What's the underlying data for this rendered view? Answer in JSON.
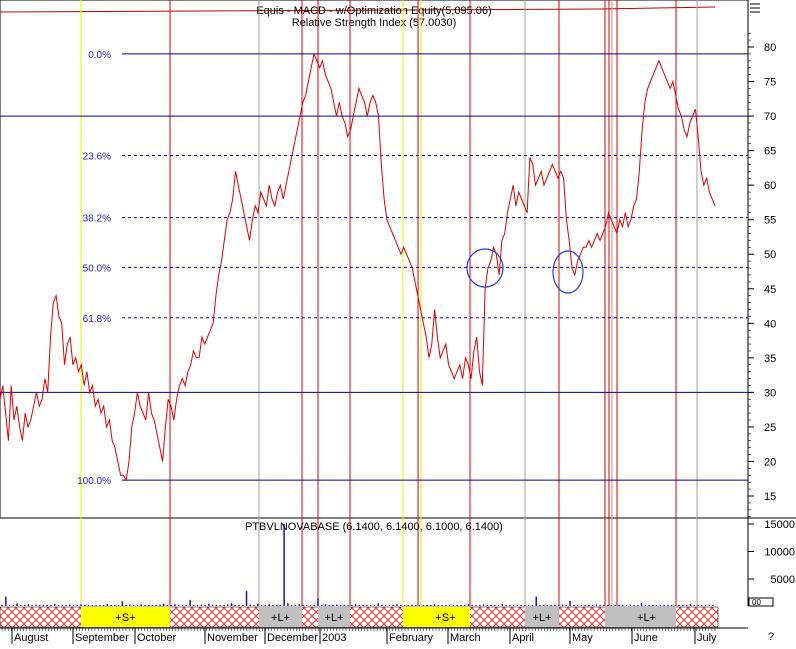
{
  "header": {
    "line1": "Equis - MACD - w/Optimization Equity(5,095.06)",
    "line2": "Relative Strength Index (57.0030)"
  },
  "volume_header": "PTBVLNOVABASE (6.1400, 6.1400, 6.1000, 6.1400)",
  "colors": {
    "rsi_line": "#e00000",
    "fib_lines": "#0000a0",
    "fib_labels": "#2020c0",
    "vertical_red": "#e00000",
    "vertical_yellow": "#f0f000",
    "vertical_gray": "#a0a0a0",
    "signal_yellow": "#ffff00",
    "signal_gray": "#c0c0c0",
    "hatch": "#e03030",
    "volume_bars": "#0000c0",
    "circles": "#2040d0"
  },
  "chart_data": [
    {
      "type": "line",
      "title": "Relative Strength Index (57.0030)",
      "y_axis_ticks": [
        80,
        75,
        70,
        65,
        60,
        55,
        50,
        45,
        40,
        35,
        30,
        25,
        20,
        15
      ],
      "ylim": [
        12,
        84
      ],
      "horizontal_solid_levels": [
        70,
        30
      ],
      "fib_levels": [
        {
          "label": "0.0%",
          "value": 79
        },
        {
          "label": "23.6%",
          "value": 64.3
        },
        {
          "label": "38.2%",
          "value": 55.3
        },
        {
          "label": "50.0%",
          "value": 48.1
        },
        {
          "label": "61.8%",
          "value": 40.8
        },
        {
          "label": "100.0%",
          "value": 17.3
        }
      ],
      "last_value": 57.003,
      "series": [
        {
          "values": [
            29,
            31,
            27,
            23,
            31,
            26,
            28,
            25,
            23,
            27,
            25,
            26,
            28,
            30,
            28,
            29,
            32,
            30,
            38,
            43,
            44,
            41,
            40,
            34,
            37,
            38,
            34,
            35,
            33,
            34,
            31,
            33,
            30,
            31,
            28,
            29,
            27,
            28,
            25,
            26,
            23,
            22,
            20,
            18,
            18,
            17.3,
            20,
            25,
            27,
            30,
            28,
            27,
            26,
            30,
            27,
            26,
            24,
            22,
            20,
            25,
            29,
            28,
            26,
            29,
            31,
            32,
            31,
            33,
            34,
            36,
            35,
            35,
            38,
            37,
            38,
            39,
            40,
            44,
            47,
            49,
            52,
            55,
            56,
            58,
            62,
            60,
            58,
            56,
            54,
            52,
            55,
            57,
            56,
            59,
            58,
            57,
            60,
            58,
            57,
            59,
            60,
            58,
            60,
            62,
            64,
            66,
            68,
            70,
            72,
            73,
            75,
            77,
            79,
            78,
            77,
            78,
            76,
            75,
            74,
            72,
            70,
            72,
            70,
            69,
            67,
            68,
            70,
            72,
            74,
            73,
            72,
            70,
            72,
            73,
            72,
            70,
            63,
            58,
            55,
            54,
            53,
            52,
            51,
            50,
            51,
            50,
            49,
            48,
            46,
            44,
            42,
            40,
            38,
            35,
            37,
            42,
            38,
            35,
            36,
            37,
            34,
            33,
            32,
            33,
            34,
            32,
            35,
            34,
            32,
            36,
            38,
            33,
            31,
            45,
            48,
            49,
            51,
            50,
            47,
            52,
            53,
            56,
            58,
            60,
            57,
            59,
            58,
            57,
            56,
            64,
            63,
            60,
            61,
            62,
            60,
            61,
            62,
            63,
            62,
            61,
            62,
            61,
            55,
            52,
            48,
            47,
            49,
            50,
            51,
            51,
            52,
            51,
            52,
            53,
            52,
            53,
            54,
            56,
            55,
            54,
            53,
            55,
            54,
            56,
            54,
            55,
            57,
            58,
            62,
            68,
            72,
            74,
            75,
            76,
            77,
            78,
            77,
            76,
            75,
            74,
            75,
            73,
            71,
            70,
            68,
            67,
            69,
            70,
            71,
            67,
            62,
            60,
            61,
            59,
            58,
            57
          ]
        }
      ]
    },
    {
      "type": "bar",
      "title": "PTBVLNOVABASE (6.1400, 6.1400, 6.1000, 6.1400)",
      "y_axis_ticks": [
        15000,
        10000,
        5000
      ],
      "ylim": [
        0,
        16500
      ],
      "values": [
        250,
        1800,
        300,
        150,
        600,
        200,
        100,
        400,
        150,
        350,
        100,
        200,
        300,
        150,
        500,
        250,
        100,
        180,
        350,
        120,
        200,
        400,
        150,
        300,
        100,
        250,
        180,
        120,
        450,
        200,
        300,
        150,
        900,
        200,
        350,
        150,
        250,
        400,
        150,
        300,
        200,
        120,
        350,
        500,
        180,
        250,
        400,
        150,
        300,
        200,
        1200,
        250,
        150,
        350,
        200,
        500,
        180,
        300,
        150,
        250,
        400,
        600,
        200,
        300,
        150,
        2800,
        350,
        200,
        500,
        300,
        150,
        400,
        250,
        200,
        300,
        15000,
        600,
        300,
        200,
        400,
        150,
        300,
        250,
        200,
        1500,
        300,
        400,
        250,
        150,
        350,
        200,
        300,
        150,
        250,
        400,
        200,
        300,
        150,
        250,
        200,
        600,
        350,
        300,
        150,
        200,
        400,
        250,
        300,
        200,
        350,
        150,
        250,
        300,
        200,
        150,
        400,
        300,
        250,
        200,
        350,
        150,
        300,
        250,
        200,
        400,
        300,
        250,
        150,
        350,
        200,
        300,
        250,
        150,
        400,
        200,
        300,
        250,
        150,
        300,
        200,
        250,
        300,
        1800,
        250,
        200,
        150,
        300,
        250,
        200,
        350,
        300,
        1000,
        250,
        200,
        300,
        150,
        250,
        200,
        350,
        300,
        250,
        150,
        200,
        300,
        250,
        150,
        200,
        350,
        300,
        250,
        600,
        200,
        150,
        300,
        250,
        200,
        150,
        300,
        250,
        200,
        150,
        300,
        250,
        400,
        200,
        150,
        300,
        250,
        200,
        150
      ]
    }
  ],
  "x_axis": {
    "months": [
      "August",
      "September",
      "October",
      "November",
      "December",
      "2003",
      "February",
      "March",
      "April",
      "May",
      "June",
      "July"
    ],
    "corner_label": "?"
  },
  "signal_bar": {
    "labels": [
      "+S+",
      "+L+",
      "+L+",
      "+S+",
      "+L+",
      "+L+"
    ]
  },
  "volume_scale_label": "00"
}
